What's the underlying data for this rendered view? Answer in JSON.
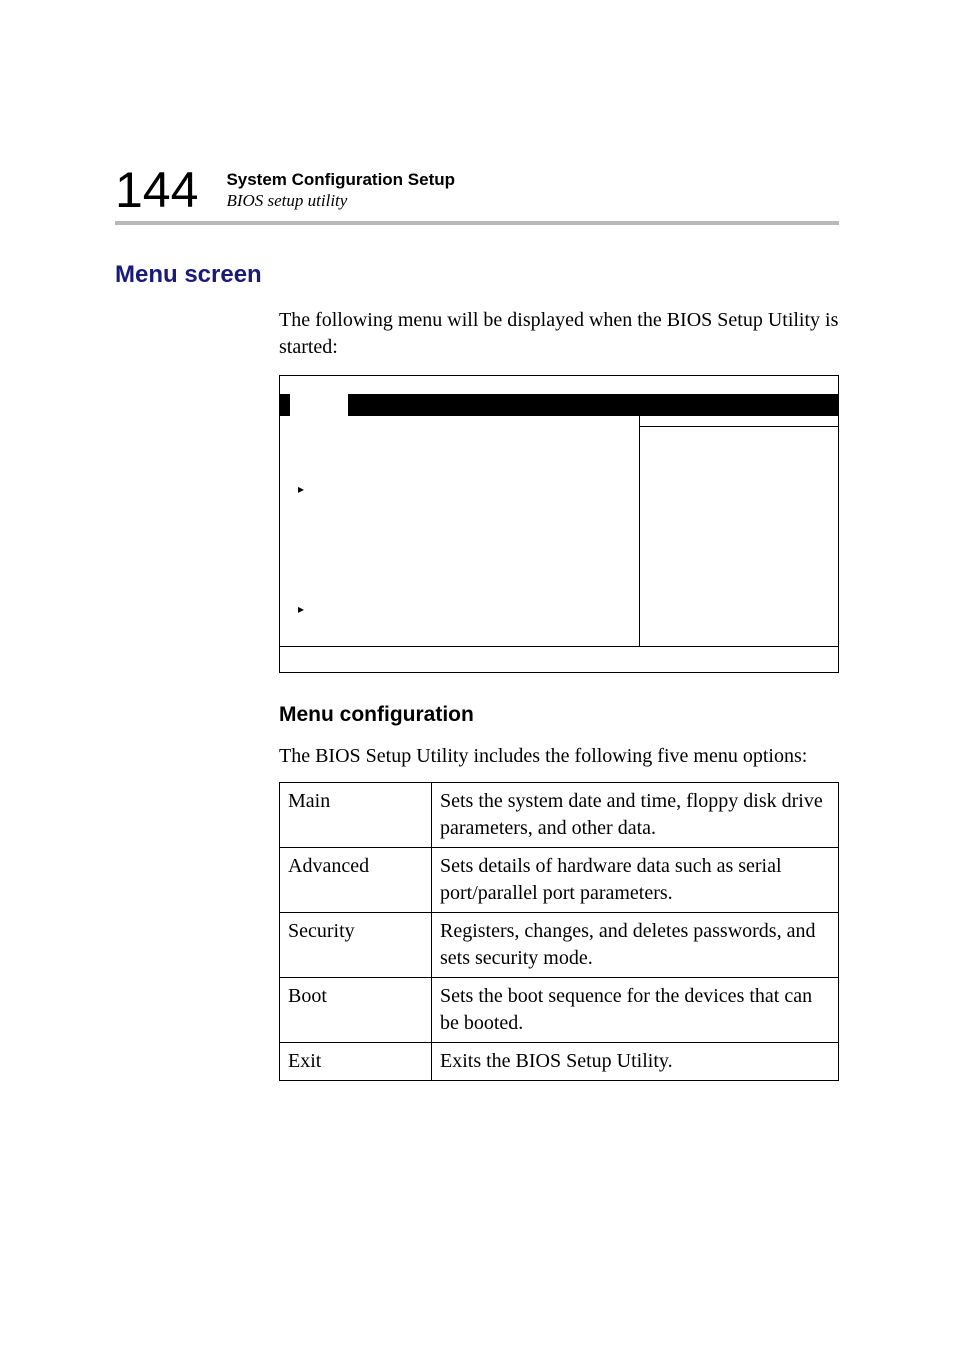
{
  "header": {
    "page_number": "144",
    "title_bold": "System Configuration Setup",
    "title_italic": "BIOS setup utility"
  },
  "section": {
    "heading": "Menu screen",
    "intro": "The following menu will be displayed when the BIOS Setup Utility is started:"
  },
  "bios_box": {
    "arrow1": "▸",
    "arrow2": "▸"
  },
  "menu_config": {
    "heading": "Menu configuration",
    "intro": "The BIOS Setup Utility includes the following five menu options:",
    "rows": [
      {
        "name": "Main",
        "desc": "Sets the system date and time, floppy disk drive parameters, and other data."
      },
      {
        "name": "Advanced",
        "desc": "Sets details of hardware data such as serial port/parallel port parameters."
      },
      {
        "name": "Security",
        "desc": "Registers, changes, and deletes passwords, and sets security mode."
      },
      {
        "name": "Boot",
        "desc": "Sets the boot sequence for the devices that can be booted."
      },
      {
        "name": "Exit",
        "desc": "Exits the BIOS Setup Utility."
      }
    ]
  },
  "colors": {
    "heading_color": "#1a1a7a",
    "rule_color": "#b8b8b8",
    "text_color": "#000000",
    "background": "#ffffff"
  },
  "fonts": {
    "sans": "Arial, Helvetica, sans-serif",
    "serif": "Times New Roman, Times, serif",
    "page_number_size_pt": 38,
    "heading_size_pt": 18,
    "body_size_pt": 15
  }
}
